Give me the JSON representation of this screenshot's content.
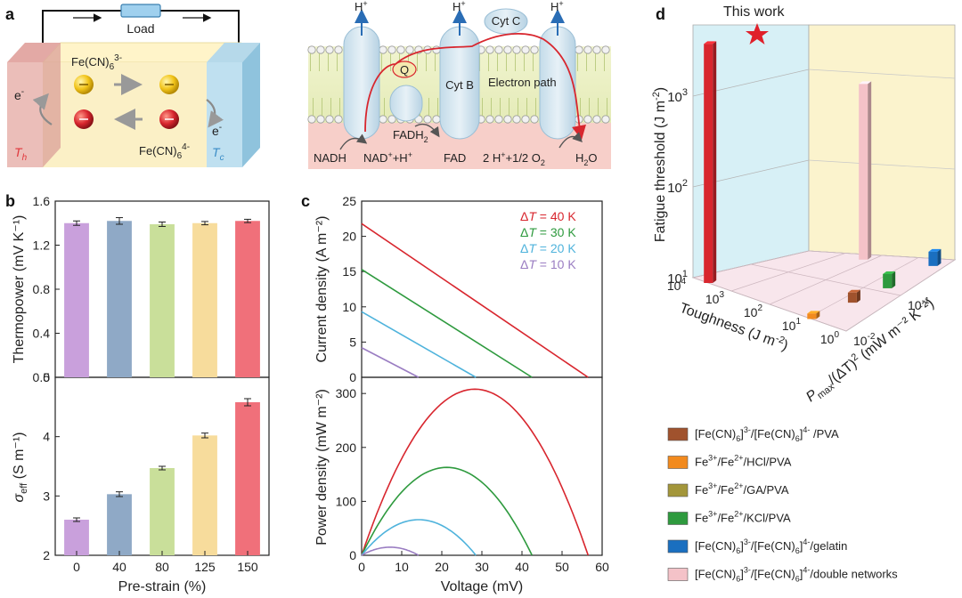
{
  "panel_labels": {
    "a": "a",
    "b": "b",
    "c": "c",
    "d": "d"
  },
  "panel_a": {
    "device": {
      "load": "Load",
      "ox_species": "Fe(CN)",
      "ox_sub": "6",
      "ox_sup": "3-",
      "red_species": "Fe(CN)",
      "red_sub": "6",
      "red_sup": "4-",
      "e_hot": "e",
      "e_cold": "e",
      "e_sup": "-",
      "t_hot": "T",
      "t_hot_sub": "h",
      "t_cold": "T",
      "t_cold_sub": "c"
    },
    "membrane": {
      "protons": [
        "H",
        "H",
        "H"
      ],
      "proton_sup": "+",
      "q": "Q",
      "cyt_c": "Cyt C",
      "cyt_b": "Cyt B",
      "electron_path": "Electron path",
      "fadh2_main": "FADH",
      "fadh2_sub": "2",
      "nadh": "NADH",
      "nad_main": "NAD",
      "nad_sup": "+",
      "nad_tail": "+H",
      "nad_tail_sup": "+",
      "fad": "FAD",
      "reaction_a": "2 H",
      "reaction_sup": "+",
      "reaction_b": "+1/2 O",
      "reaction_sub": "2",
      "water_a": "H",
      "water_sub": "2",
      "water_b": "O"
    }
  },
  "chart_data": [
    {
      "id": "b-top",
      "type": "bar",
      "categories": [
        "0",
        "40",
        "80",
        "125",
        "150"
      ],
      "values": [
        1.4,
        1.42,
        1.39,
        1.4,
        1.42
      ],
      "errors": [
        0.02,
        0.03,
        0.02,
        0.015,
        0.015
      ],
      "colors": [
        "#c9a0dc",
        "#8fa9c6",
        "#c9df9a",
        "#f7dc9c",
        "#f0707a"
      ],
      "ylabel": "Thermopower (mV K⁻¹)",
      "ylim": [
        0,
        1.6
      ],
      "yticks": [
        "0.0",
        "0.4",
        "0.8",
        "1.2",
        "1.6"
      ]
    },
    {
      "id": "b-bottom",
      "type": "bar",
      "categories": [
        "0",
        "40",
        "80",
        "125",
        "150"
      ],
      "values": [
        2.6,
        3.03,
        3.47,
        4.02,
        4.58
      ],
      "errors": [
        0.03,
        0.04,
        0.03,
        0.04,
        0.06
      ],
      "colors": [
        "#c9a0dc",
        "#8fa9c6",
        "#c9df9a",
        "#f7dc9c",
        "#f0707a"
      ],
      "ylabel_main": "σ",
      "ylabel_sub": "eff",
      "ylabel_tail": " (S m⁻¹)",
      "xlabel": "Pre-strain (%)",
      "ylim": [
        2,
        5
      ],
      "yticks": [
        "2",
        "3",
        "4",
        "5"
      ]
    },
    {
      "id": "c-top",
      "type": "line",
      "ylabel": "Current density (A m⁻²)",
      "xlim": [
        0,
        60
      ],
      "ylim": [
        0,
        25
      ],
      "yticks": [
        "0",
        "5",
        "10",
        "15",
        "20",
        "25"
      ],
      "series": [
        {
          "name": "ΔT = 40 K",
          "delta": "Δ",
          "var": "T",
          "rest": " = 40 K",
          "color": "#d8262e",
          "x": [
            0,
            56.5
          ],
          "y": [
            21.8,
            0
          ]
        },
        {
          "name": "ΔT = 30 K",
          "delta": "Δ",
          "var": "T",
          "rest": " = 30 K",
          "color": "#2e9a3e",
          "x": [
            0,
            42.5
          ],
          "y": [
            15.3,
            0
          ]
        },
        {
          "name": "ΔT = 20 K",
          "delta": "Δ",
          "var": "T",
          "rest": " = 20 K",
          "color": "#4fb3dc",
          "x": [
            0,
            28.5
          ],
          "y": [
            9.3,
            0
          ]
        },
        {
          "name": "ΔT = 10 K",
          "delta": "Δ",
          "var": "T",
          "rest": " = 10 K",
          "color": "#9a7dc2",
          "x": [
            0,
            14.2
          ],
          "y": [
            4.2,
            0
          ]
        }
      ]
    },
    {
      "id": "c-bottom",
      "type": "line",
      "ylabel": "Power density (mW m⁻²)",
      "xlabel": "Voltage (mV)",
      "xlim": [
        0,
        60
      ],
      "ylim": [
        0,
        330
      ],
      "xticks": [
        "0",
        "10",
        "20",
        "30",
        "40",
        "50",
        "60"
      ],
      "yticks": [
        "0",
        "100",
        "200",
        "300"
      ],
      "series": [
        {
          "name": "ΔT = 40 K",
          "color": "#d8262e",
          "voc": 56.5,
          "pmax": 308
        },
        {
          "name": "ΔT = 30 K",
          "color": "#2e9a3e",
          "voc": 42.5,
          "pmax": 163
        },
        {
          "name": "ΔT = 20 K",
          "color": "#4fb3dc",
          "voc": 28.5,
          "pmax": 66
        },
        {
          "name": "ΔT = 10 K",
          "color": "#9a7dc2",
          "voc": 14.2,
          "pmax": 15
        }
      ]
    },
    {
      "id": "d",
      "type": "bar3d",
      "annotation": "This work",
      "zlabel_main": "Fatigue threshold (J m",
      "zlabel_sup": "-2",
      "zlabel_tail": ")",
      "xlabel_main": "Toughness (J m",
      "xlabel_sup": "-2",
      "xlabel_tail": ")",
      "ylabel_main": "P",
      "ylabel_sub": "max",
      "ylabel_mid": "/(ΔT)",
      "ylabel_sup": "2",
      "ylabel_tail": " (mW m⁻² K⁻²)",
      "zticks": [
        {
          "base": "10",
          "exp": "1"
        },
        {
          "base": "10",
          "exp": "2"
        },
        {
          "base": "10",
          "exp": "3"
        }
      ],
      "xticks": [
        {
          "base": "10",
          "exp": "4"
        },
        {
          "base": "10",
          "exp": "3"
        },
        {
          "base": "10",
          "exp": "2"
        },
        {
          "base": "10",
          "exp": "1"
        },
        {
          "base": "10",
          "exp": "0"
        }
      ],
      "yticks": [
        {
          "base": "10",
          "exp": "-2"
        },
        {
          "base": "10",
          "exp": "-1"
        },
        {
          "base": "10",
          "exp": "0"
        }
      ],
      "bars": [
        {
          "name": "This work",
          "color": "#d8262e",
          "toughness_log": 3.6,
          "pmax_log": -2.0,
          "fatigue": 3000
        },
        {
          "name": "[Fe(CN)6]3-/[Fe(CN)6]4-/double networks",
          "color": "#f4c2c8",
          "toughness_log": 2.2,
          "pmax_log": -0.2,
          "fatigue": 600
        },
        {
          "name": "Fe3+/Fe2+/HCl/PVA",
          "color": "#f28a1e",
          "toughness_log": 0.9,
          "pmax_log": -2.0,
          "fatigue": 8
        },
        {
          "name": "[Fe(CN)6]3-/[Fe(CN)6]4-/PVA",
          "color": "#a0522d",
          "toughness_log": 0.7,
          "pmax_log": -1.4,
          "fatigue": 9
        },
        {
          "name": "Fe3+/Fe2+/KCl/PVA",
          "color": "#2e9a3e",
          "toughness_log": 0.5,
          "pmax_log": -0.9,
          "fatigue": 10
        },
        {
          "name": "[Fe(CN)6]3-/[Fe(CN)6]4-/gelatin",
          "color": "#1a6fc0",
          "toughness_log": 0.3,
          "pmax_log": -0.2,
          "fatigue": 10
        }
      ],
      "legend": [
        {
          "color": "#a0522d",
          "parts": [
            "[Fe(CN)",
            "6",
            "]",
            "3-",
            "/[Fe(CN)",
            "6",
            "]",
            "4-",
            " /PVA"
          ]
        },
        {
          "color": "#f28a1e",
          "parts": [
            "Fe",
            "",
            "",
            "3+",
            "/Fe",
            "",
            "",
            "2+",
            "/HCl/PVA"
          ]
        },
        {
          "color": "#a3963a",
          "parts": [
            "Fe",
            "",
            "",
            "3+",
            "/Fe",
            "",
            "",
            "2+",
            "/GA/PVA"
          ]
        },
        {
          "color": "#2e9a3e",
          "parts": [
            "Fe",
            "",
            "",
            "3+",
            "/Fe",
            "",
            "",
            "2+",
            "/KCl/PVA"
          ]
        },
        {
          "color": "#1a6fc0",
          "parts": [
            "[Fe(CN)",
            "6",
            "]",
            "3-",
            "/[Fe(CN)",
            "6",
            "]",
            "4-",
            "/gelatin"
          ]
        },
        {
          "color": "#f4c2c8",
          "parts": [
            "[Fe(CN)",
            "6",
            "]",
            "3-",
            "/[Fe(CN)",
            "6",
            "]",
            "4-",
            "/double networks"
          ]
        }
      ]
    }
  ]
}
